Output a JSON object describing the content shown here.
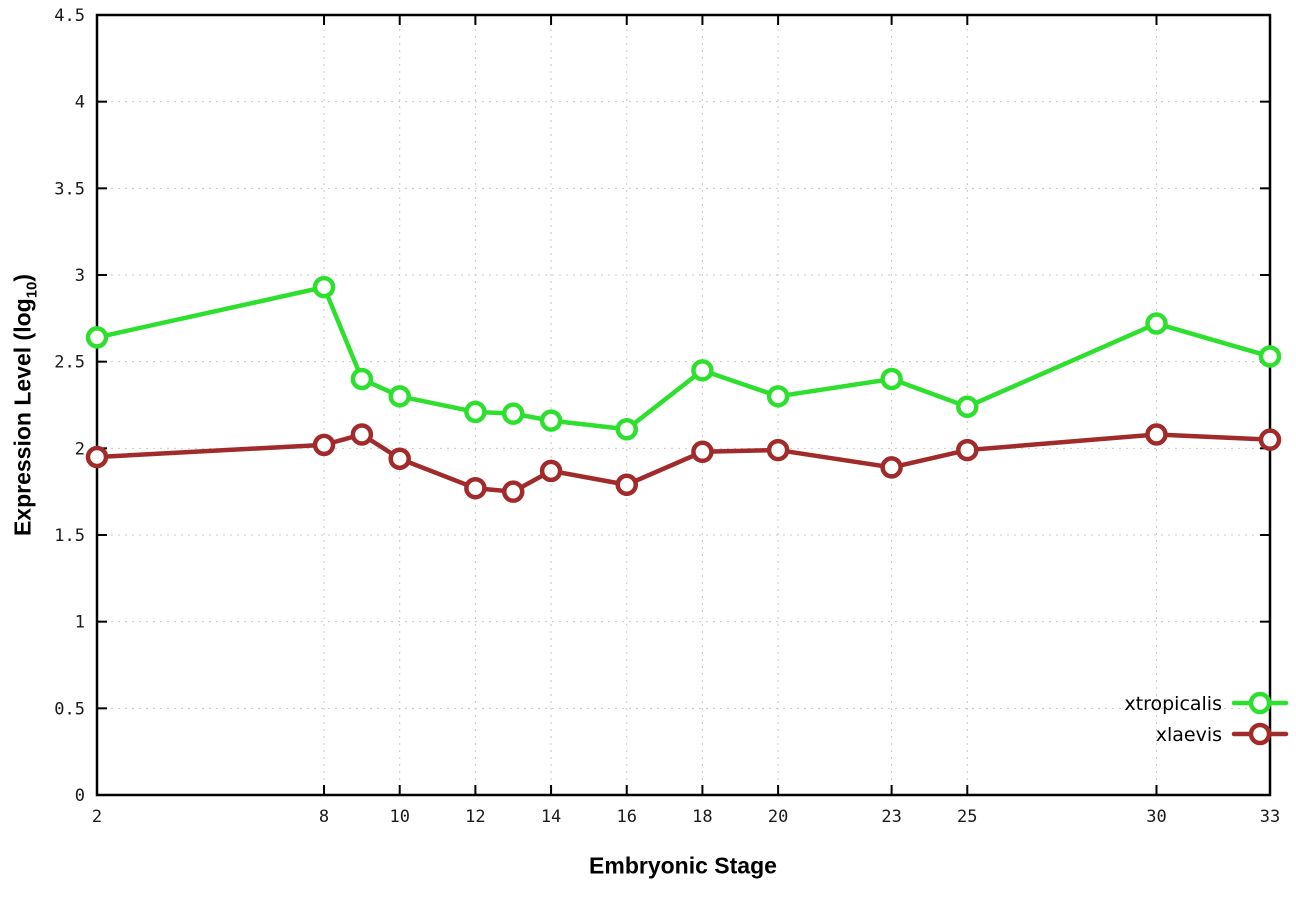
{
  "chart_data": {
    "type": "line",
    "title": "",
    "xlabel": "Embryonic Stage",
    "ylabel": "Expression Level (log10)",
    "ylabel_prefix": "Expression Level (log",
    "ylabel_sub": "10",
    "ylabel_suffix": ")",
    "xlim": [
      2,
      33
    ],
    "ylim": [
      0,
      4.5
    ],
    "x_ticks": [
      2,
      8,
      10,
      12,
      14,
      16,
      18,
      20,
      23,
      25,
      30,
      33
    ],
    "y_ticks": [
      0,
      0.5,
      1,
      1.5,
      2,
      2.5,
      3,
      3.5,
      4,
      4.5
    ],
    "grid": true,
    "legend_position": "bottom-right",
    "x": [
      2,
      8,
      9,
      10,
      12,
      13,
      14,
      16,
      18,
      20,
      23,
      25,
      30,
      33
    ],
    "series": [
      {
        "name": "xtropicalis",
        "color": "#2ee02e",
        "values": [
          2.64,
          2.93,
          2.4,
          2.3,
          2.21,
          2.2,
          2.16,
          2.11,
          2.45,
          2.3,
          2.4,
          2.24,
          2.72,
          2.53
        ]
      },
      {
        "name": "xlaevis",
        "color": "#a12a2a",
        "values": [
          1.95,
          2.02,
          2.08,
          1.94,
          1.77,
          1.75,
          1.87,
          1.79,
          1.98,
          1.99,
          1.89,
          1.99,
          2.08,
          2.05
        ]
      }
    ]
  }
}
